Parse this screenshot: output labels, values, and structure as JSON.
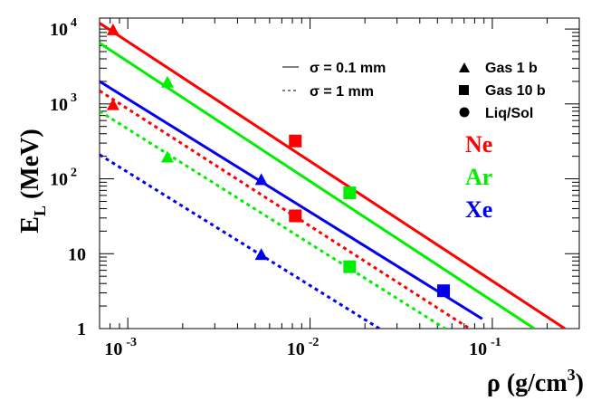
{
  "chart_data": {
    "type": "line",
    "title": "",
    "xlabel": "ρ (g/cm",
    "xlabel_sup": "3",
    "xlabel_close": ")",
    "ylabel": "E",
    "ylabel_sub": "L",
    "ylabel_unit": " (MeV)",
    "xscale": "log",
    "yscale": "log",
    "xlim": [
      0.0007,
      0.3
    ],
    "ylim": [
      1,
      14000
    ],
    "grid": false,
    "x_ticks": [
      {
        "value": 0.001,
        "base": "10",
        "exp": "-3"
      },
      {
        "value": 0.01,
        "base": "10",
        "exp": "-2"
      },
      {
        "value": 0.1,
        "base": "10",
        "exp": "-1"
      }
    ],
    "y_ticks": [
      {
        "value": 1,
        "base": "1",
        "exp": ""
      },
      {
        "value": 10,
        "base": "10",
        "exp": ""
      },
      {
        "value": 100,
        "base": "10",
        "exp": "2"
      },
      {
        "value": 1000,
        "base": "10",
        "exp": "3"
      },
      {
        "value": 10000,
        "base": "10",
        "exp": "4"
      }
    ],
    "line_styles": [
      {
        "style": "solid",
        "label": "σ = 0.1 mm"
      },
      {
        "style": "dashed",
        "label": "σ = 1 mm"
      }
    ],
    "marker_legend": [
      {
        "marker": "triangle",
        "label": "Gas 1 b"
      },
      {
        "marker": "square",
        "label": "Gas 10 b"
      },
      {
        "marker": "circle",
        "label": "Liq/Sol"
      }
    ],
    "elements": [
      {
        "name": "Ne",
        "color": "#ff0000"
      },
      {
        "name": "Ar",
        "color": "#00ee00"
      },
      {
        "name": "Xe",
        "color": "#0000ee"
      }
    ],
    "series": [
      {
        "element": "Ne",
        "style": "solid",
        "color": "#ff0000",
        "x": [
          0.0007,
          0.25
        ],
        "y": [
          12000,
          1
        ]
      },
      {
        "element": "Ar",
        "style": "solid",
        "color": "#00ee00",
        "x": [
          0.0007,
          0.17
        ],
        "y": [
          6500,
          1
        ]
      },
      {
        "element": "Xe",
        "style": "solid",
        "color": "#0000ee",
        "x": [
          0.0007,
          0.088
        ],
        "y": [
          2000,
          1.35
        ]
      },
      {
        "element": "Ne",
        "style": "dashed",
        "color": "#ff0000",
        "x": [
          0.0007,
          0.075
        ],
        "y": [
          1500,
          1
        ]
      },
      {
        "element": "Ar",
        "style": "dashed",
        "color": "#00ee00",
        "x": [
          0.0007,
          0.055
        ],
        "y": [
          800,
          1
        ]
      },
      {
        "element": "Xe",
        "style": "dashed",
        "color": "#0000ee",
        "x": [
          0.0007,
          0.024
        ],
        "y": [
          210,
          1
        ]
      }
    ],
    "points": [
      {
        "element": "Ne",
        "marker": "triangle",
        "color": "#ff0000",
        "x": 0.00083,
        "y": 9500
      },
      {
        "element": "Ar",
        "marker": "triangle",
        "color": "#00ee00",
        "x": 0.00165,
        "y": 1900
      },
      {
        "element": "Xe",
        "marker": "triangle",
        "color": "#0000ee",
        "x": 0.0054,
        "y": 95
      },
      {
        "element": "Ne",
        "marker": "square",
        "color": "#ff0000",
        "x": 0.0083,
        "y": 320
      },
      {
        "element": "Ar",
        "marker": "square",
        "color": "#00ee00",
        "x": 0.0165,
        "y": 65
      },
      {
        "element": "Xe",
        "marker": "square",
        "color": "#0000ee",
        "x": 0.054,
        "y": 3.2
      },
      {
        "element": "Ne",
        "marker": "triangle",
        "color": "#ff0000",
        "x": 0.00083,
        "y": 950
      },
      {
        "element": "Ar",
        "marker": "triangle",
        "color": "#00ee00",
        "x": 0.00165,
        "y": 190
      },
      {
        "element": "Xe",
        "marker": "triangle",
        "color": "#0000ee",
        "x": 0.0054,
        "y": 9.5
      },
      {
        "element": "Ne",
        "marker": "square",
        "color": "#ff0000",
        "x": 0.0083,
        "y": 32
      },
      {
        "element": "Ar",
        "marker": "square",
        "color": "#00ee00",
        "x": 0.0165,
        "y": 6.7
      }
    ]
  }
}
